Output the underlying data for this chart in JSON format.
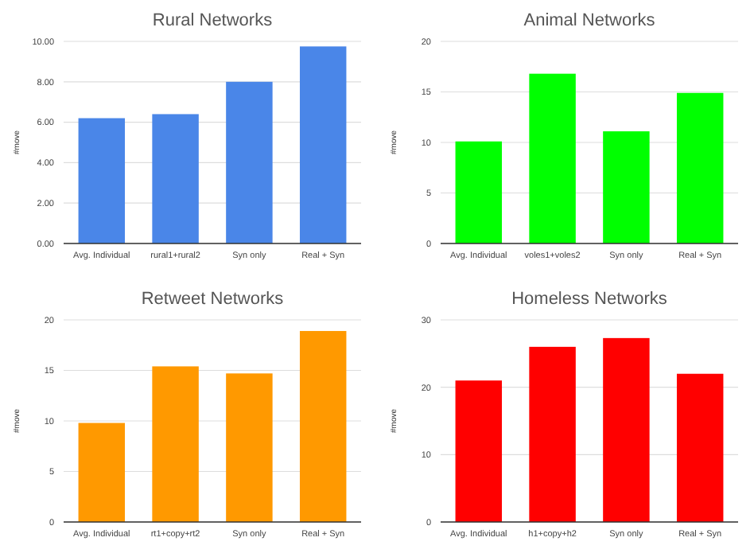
{
  "chart_data": [
    {
      "type": "bar",
      "title": "Rural Networks",
      "ylabel": "#move",
      "categories": [
        "Avg. Individual",
        "rural1+rural2",
        "Syn only",
        "Real + Syn"
      ],
      "values": [
        6.2,
        6.4,
        8.0,
        9.75
      ],
      "color": "#4a86e8",
      "ylim": [
        0,
        10
      ],
      "yticks": [
        {
          "value": 0,
          "label": "0.00"
        },
        {
          "value": 2,
          "label": "2.00"
        },
        {
          "value": 4,
          "label": "4.00"
        },
        {
          "value": 6,
          "label": "6.00"
        },
        {
          "value": 8,
          "label": "8.00"
        },
        {
          "value": 10,
          "label": "10.00"
        }
      ],
      "grid": "y"
    },
    {
      "type": "bar",
      "title": "Animal Networks",
      "ylabel": "#move",
      "categories": [
        "Avg. Individual",
        "voles1+voles2",
        "Syn only",
        "Real + Syn"
      ],
      "values": [
        10.1,
        16.8,
        11.1,
        14.9
      ],
      "color": "#00ff00",
      "ylim": [
        0,
        20
      ],
      "yticks": [
        0,
        5,
        10,
        15,
        20
      ],
      "grid": "y"
    },
    {
      "type": "bar",
      "title": "Retweet Networks",
      "ylabel": "#move",
      "categories": [
        "Avg. Individual",
        "rt1+copy+rt2",
        "Syn only",
        "Real + Syn"
      ],
      "values": [
        9.8,
        15.4,
        14.7,
        18.9
      ],
      "color": "#ff9900",
      "ylim": [
        0,
        20
      ],
      "yticks": [
        0,
        5,
        10,
        15,
        20
      ],
      "grid": "y"
    },
    {
      "type": "bar",
      "title": "Homeless Networks",
      "ylabel": "#move",
      "categories": [
        "Avg. Individual",
        "h1+copy+h2",
        "Syn only",
        "Real + Syn"
      ],
      "values": [
        21,
        26,
        27.3,
        22
      ],
      "color": "#ff0000",
      "ylim": [
        0,
        30
      ],
      "yticks": [
        0,
        10,
        20,
        30
      ],
      "grid": "y"
    }
  ]
}
